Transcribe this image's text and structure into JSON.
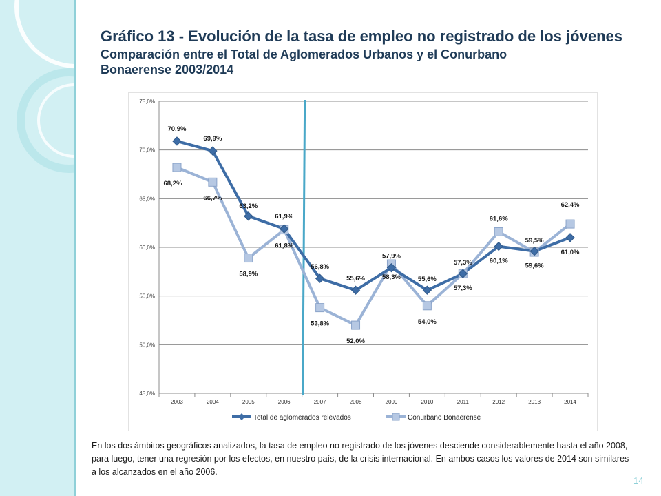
{
  "slide": {
    "title": "Gráfico 13 - Evolución de la tasa de empleo no registrado de los jóvenes",
    "subtitle": "Comparación entre el Total de Aglomerados Urbanos y el Conurbano Bonaerense 2003/2014",
    "paragraph": "En los dos ámbitos geográficos analizados, la tasa de empleo no registrado de los jóvenes desciende considerablemente hasta el año 2008, para luego, tener una regresión por los efectos, en nuestro país, de la crisis internacional.  En ambos casos los valores de 2014 son similares a los alcanzados en el año 2006.",
    "page_number": "14"
  },
  "colors": {
    "series1": "#3e6da6",
    "series2": "#9bb3d6",
    "marker_line": "#4aa8c8",
    "side_band": "#d2f0f3"
  },
  "chart_data": {
    "type": "line",
    "categories": [
      "2003",
      "2004",
      "2005",
      "2006",
      "2007",
      "2008",
      "2009",
      "2010",
      "2011",
      "2012",
      "2013",
      "2014"
    ],
    "series": [
      {
        "name": "Total de aglomerados relevados",
        "values": [
          70.9,
          69.9,
          63.2,
          61.9,
          56.8,
          55.6,
          57.9,
          55.6,
          57.3,
          60.1,
          59.6,
          61.0
        ],
        "labels": [
          "70,9%",
          "69,9%",
          "63,2%",
          "61,9%",
          "56,8%",
          "55,6%",
          "57,9%",
          "55,6%",
          "57,3%",
          "60,1%",
          "59,6%",
          "61,0%"
        ],
        "marker": "diamond"
      },
      {
        "name": "Conurbano Bonaerense",
        "values": [
          68.2,
          66.7,
          58.9,
          61.8,
          53.8,
          52.0,
          58.3,
          54.0,
          57.3,
          61.6,
          59.5,
          62.4
        ],
        "labels": [
          "68,2%",
          "66,7%",
          "58,9%",
          "61,8%",
          "53,8%",
          "52,0%",
          "58,3%",
          "54,0%",
          "57,3%",
          "61,6%",
          "59,5%",
          "62,4%"
        ],
        "marker": "square"
      }
    ],
    "y_ticks": [
      "45,0%",
      "50,0%",
      "55,0%",
      "60,0%",
      "65,0%",
      "70,0%",
      "75,0%"
    ],
    "ylim": [
      45,
      75
    ],
    "y_step": 5,
    "vertical_marker_between": [
      "2006",
      "2007"
    ],
    "grid": true,
    "legend": "bottom"
  }
}
